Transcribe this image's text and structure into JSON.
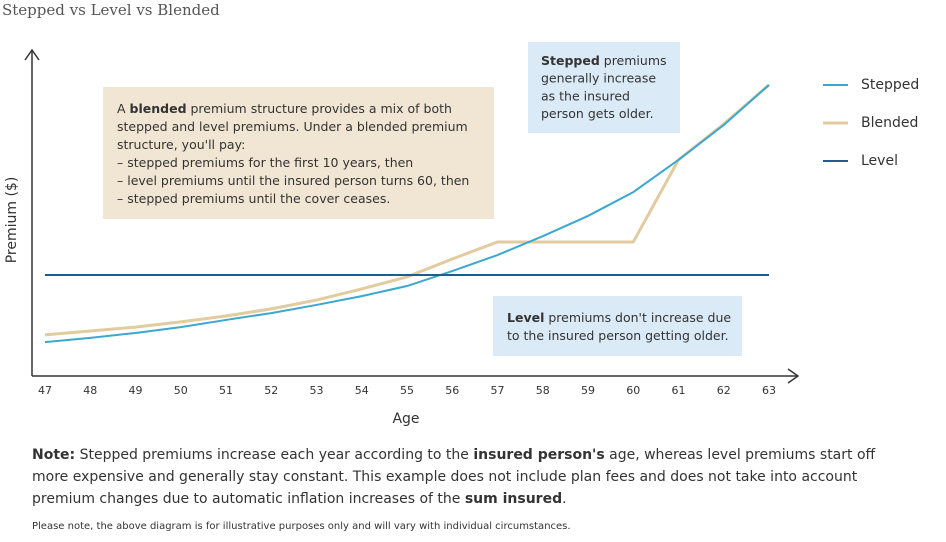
{
  "chart_data": {
    "type": "line",
    "title": "Stepped vs Level vs Blended",
    "x_label": "Age",
    "y_label": "Premium ($)",
    "x": [
      47,
      48,
      49,
      50,
      51,
      52,
      53,
      54,
      55,
      56,
      57,
      58,
      59,
      60,
      61,
      62,
      63
    ],
    "xlim": [
      47,
      63
    ],
    "xticks": [
      47,
      48,
      49,
      50,
      51,
      52,
      53,
      54,
      55,
      56,
      57,
      58,
      59,
      60,
      61,
      62,
      63
    ],
    "ylim": [
      0,
      100
    ],
    "legend": "right",
    "series": [
      {
        "name": "Stepped",
        "color": "#3aa8cf",
        "values": [
          10.4,
          11.7,
          13.2,
          15.0,
          17.2,
          19.3,
          21.8,
          24.5,
          27.6,
          32.2,
          37.1,
          42.9,
          49.1,
          56.4,
          66.3,
          77.0,
          89.3
        ]
      },
      {
        "name": "Blended",
        "color": "#e2cb9f",
        "values": [
          12.6,
          13.8,
          15.0,
          16.6,
          18.4,
          20.6,
          23.3,
          26.7,
          30.4,
          35.9,
          41.1,
          41.1,
          41.1,
          41.1,
          66.3,
          77.3,
          89.3
        ]
      },
      {
        "name": "Level",
        "color": "#1f5d8c",
        "values": [
          31.0,
          31.0,
          31.0,
          31.0,
          31.0,
          31.0,
          31.0,
          31.0,
          31.0,
          31.0,
          31.0,
          31.0,
          31.0,
          31.0,
          31.0,
          31.0,
          31.0
        ]
      }
    ],
    "annotations": [
      {
        "lines": [
          [
            "A ",
            {
              "text": "blended",
              "bold": true
            },
            " premium structure provides a mix of both"
          ],
          [
            "stepped and level premiums. Under a blended premium"
          ],
          [
            "structure, you'll pay:"
          ],
          [
            "– stepped premiums for the first 10 years, then"
          ],
          [
            "– level premiums until the insured person turns 60, then"
          ],
          [
            "– stepped premiums until the cover ceases."
          ]
        ]
      },
      {
        "lines": [
          [
            {
              "text": "Stepped",
              "bold": true
            },
            " premiums"
          ],
          [
            "generally increase"
          ],
          [
            "as the insured"
          ],
          [
            "person gets older."
          ]
        ]
      },
      {
        "lines": [
          [
            {
              "text": "Level",
              "bold": true
            },
            " premiums don't increase due"
          ],
          [
            "to the insured person getting older."
          ]
        ]
      }
    ]
  },
  "note": [
    "",
    {
      "text": "Note:",
      "bold": true
    },
    " Stepped premiums increase each year according to the ",
    {
      "text": "insured person's",
      "bold": true
    },
    " age, whereas level premiums start off more expensive and generally stay constant. This example does not include plan fees and does not take into account premium changes due to automatic inflation increases of the ",
    {
      "text": "sum insured",
      "bold": true
    },
    "."
  ],
  "disclaimer": "Please note, the above diagram is for illustrative purposes only and will vary with individual circumstances."
}
